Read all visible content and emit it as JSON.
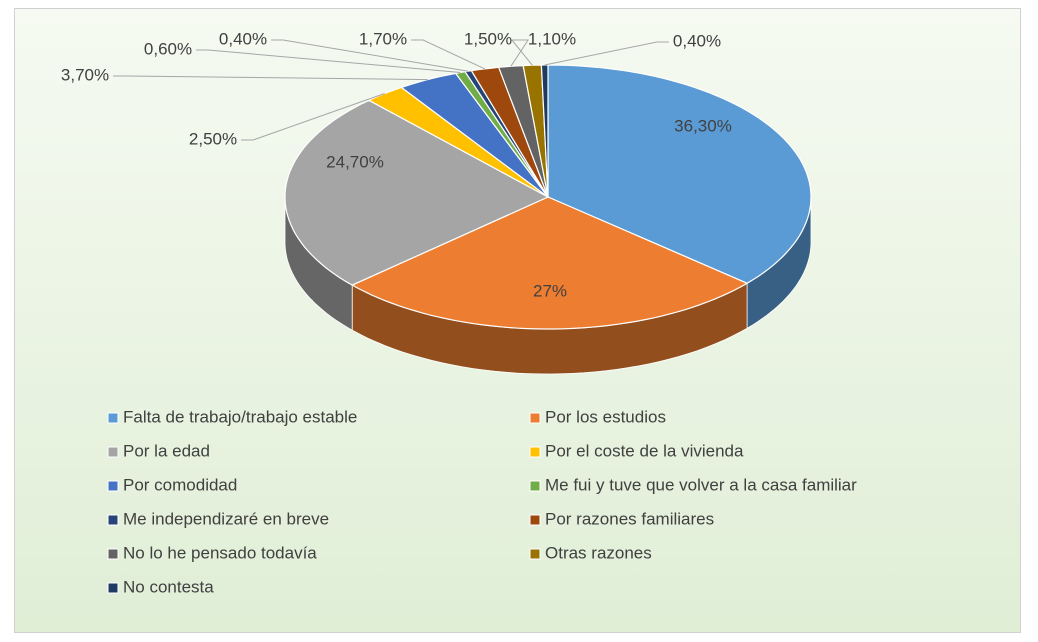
{
  "chart_data": {
    "type": "pie",
    "categories": [
      "Falta de trabajo/trabajo estable",
      "Por los estudios",
      "Por la edad",
      "Por el coste de la vivienda",
      "Por comodidad",
      "Me fui y tuve que volver a la casa familiar",
      "Me independizaré en breve",
      "Por razones familiares",
      "No lo he pensado todavía",
      "Otras razones",
      "No contesta"
    ],
    "values": [
      36.3,
      27,
      24.7,
      2.5,
      3.7,
      0.6,
      0.4,
      1.7,
      1.5,
      1.1,
      0.4
    ],
    "value_labels": [
      "36,30%",
      "27%",
      "24,70%",
      "2,50%",
      "3,70%",
      "0,60%",
      "0,40%",
      "1,70%",
      "1,50%",
      "1,10%",
      "0,40%"
    ],
    "colors": [
      "#5b9bd5",
      "#ed7d31",
      "#a5a5a5",
      "#ffc000",
      "#4472c4",
      "#70ad47",
      "#264478",
      "#9e480e",
      "#636363",
      "#997300",
      "#1f3b63"
    ],
    "legend": "bottom"
  }
}
